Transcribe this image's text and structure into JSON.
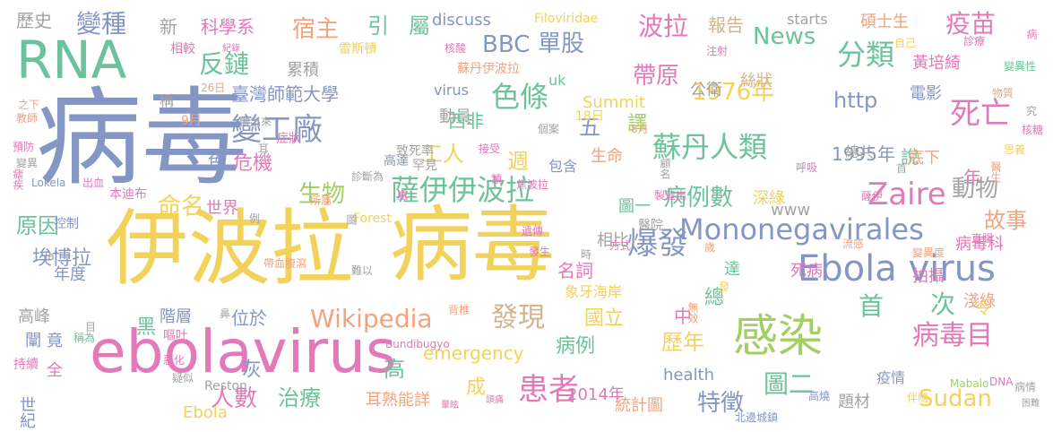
{
  "palette": {
    "blue": "#8496c4",
    "green": "#6cc39b",
    "pink": "#e279b8",
    "orange": "#f2a37f",
    "yellow": "#f2d25b",
    "grey": "#a3a3a3",
    "lime": "#a3cf62",
    "tan": "#d6b28c"
  },
  "words": [
    {
      "text": "病毒",
      "color": "blue"
    },
    {
      "text": "伊波拉",
      "color": "yellow"
    },
    {
      "text": "病毒",
      "color": "yellow"
    },
    {
      "text": "ebolavirus",
      "color": "pink"
    },
    {
      "text": "RNA",
      "color": "green"
    },
    {
      "text": "感染",
      "color": "lime"
    },
    {
      "text": "Ebola virus",
      "color": "blue"
    },
    {
      "text": "Mononegavirales",
      "color": "blue"
    },
    {
      "text": "薩伊伊波拉",
      "color": "green"
    },
    {
      "text": "蘇丹人類",
      "color": "green"
    },
    {
      "text": "Zaire",
      "color": "pink"
    },
    {
      "text": "死亡",
      "color": "pink"
    },
    {
      "text": "患者",
      "color": "pink"
    },
    {
      "text": "爆發",
      "color": "blue"
    },
    {
      "text": "病毒目",
      "color": "pink"
    },
    {
      "text": "變工廠",
      "color": "blue"
    },
    {
      "text": "色條",
      "color": "green"
    },
    {
      "text": "發現",
      "color": "tan"
    },
    {
      "text": "Wikipedia",
      "color": "orange"
    },
    {
      "text": "分類",
      "color": "green"
    },
    {
      "text": "1976年",
      "color": "yellow"
    },
    {
      "text": "首",
      "color": "green"
    },
    {
      "text": "次",
      "color": "green"
    },
    {
      "text": "病例數",
      "color": "green"
    },
    {
      "text": "疫苗",
      "color": "pink"
    },
    {
      "text": "反鏈",
      "color": "green"
    },
    {
      "text": "宿主",
      "color": "orange"
    },
    {
      "text": "變種",
      "color": "blue"
    },
    {
      "text": "BBC",
      "color": "blue"
    },
    {
      "text": "News",
      "color": "green"
    },
    {
      "text": "單股",
      "color": "blue"
    },
    {
      "text": "波拉",
      "color": "pink"
    },
    {
      "text": "帶原",
      "color": "pink"
    },
    {
      "text": "工人",
      "color": "yellow"
    },
    {
      "text": "Sudan",
      "color": "yellow"
    },
    {
      "text": "圖二",
      "color": "green"
    },
    {
      "text": "治療",
      "color": "green"
    },
    {
      "text": "人數",
      "color": "pink"
    },
    {
      "text": "特徵",
      "color": "blue"
    },
    {
      "text": "歷年",
      "color": "yellow"
    },
    {
      "text": "生物",
      "color": "lime"
    },
    {
      "text": "命名",
      "color": "yellow"
    },
    {
      "text": "原因",
      "color": "green"
    },
    {
      "text": "動物",
      "color": "grey"
    },
    {
      "text": "故事",
      "color": "orange"
    },
    {
      "text": "病例",
      "color": "green"
    },
    {
      "text": "國立",
      "color": "yellow"
    },
    {
      "text": "1995年",
      "color": "blue"
    },
    {
      "text": "http",
      "color": "blue"
    },
    {
      "text": "臺灣師範大學",
      "color": "blue"
    },
    {
      "text": "科學系",
      "color": "pink"
    },
    {
      "text": "emergency",
      "color": "yellow"
    },
    {
      "text": "health",
      "color": "blue"
    },
    {
      "text": "2014年",
      "color": "pink"
    },
    {
      "text": "Ebola",
      "color": "yellow"
    },
    {
      "text": "Reston",
      "color": "grey"
    },
    {
      "text": "discuss",
      "color": "blue"
    },
    {
      "text": "Filoviridae",
      "color": "yellow"
    },
    {
      "text": "starts",
      "color": "grey"
    },
    {
      "text": "碩士生",
      "color": "orange"
    },
    {
      "text": "Summit",
      "color": "yellow"
    },
    {
      "text": "virus",
      "color": "blue"
    },
    {
      "text": "uk",
      "color": "green"
    },
    {
      "text": "www",
      "color": "grey"
    },
    {
      "text": "Forest",
      "color": "yellow"
    },
    {
      "text": "Lokela",
      "color": "blue"
    },
    {
      "text": "Taï",
      "color": "grey"
    },
    {
      "text": "Mabalo",
      "color": "lime"
    },
    {
      "text": "DNA",
      "color": "pink"
    },
    {
      "text": "Bundibugyo",
      "color": "pink"
    },
    {
      "text": "黃培綺",
      "color": "pink"
    },
    {
      "text": "電影",
      "color": "blue"
    },
    {
      "text": "報告",
      "color": "tan"
    },
    {
      "text": "雷斯頓",
      "color": "yellow"
    },
    {
      "text": "蘇丹伊波拉",
      "color": "orange"
    },
    {
      "text": "累積",
      "color": "grey"
    },
    {
      "text": "公衛",
      "color": "grey"
    },
    {
      "text": "絲狀",
      "color": "tan"
    },
    {
      "text": "引",
      "color": "green"
    },
    {
      "text": "屬",
      "color": "green"
    },
    {
      "text": "新",
      "color": "grey"
    },
    {
      "text": "歷史",
      "color": "grey"
    },
    {
      "text": "動員",
      "color": "grey"
    },
    {
      "text": "西非",
      "color": "green"
    },
    {
      "text": "五",
      "color": "blue"
    },
    {
      "text": "譯",
      "color": "lime"
    },
    {
      "text": "週",
      "color": "yellow"
    },
    {
      "text": "包含",
      "color": "blue"
    },
    {
      "text": "生命",
      "color": "orange"
    },
    {
      "text": "危機",
      "color": "pink"
    },
    {
      "text": "色",
      "color": "blue"
    },
    {
      "text": "世界",
      "color": "pink"
    },
    {
      "text": "年",
      "color": "pink"
    },
    {
      "text": "說",
      "color": "green"
    },
    {
      "text": "底下",
      "color": "orange"
    },
    {
      "text": "深綠",
      "color": "yellow"
    },
    {
      "text": "圖一",
      "color": "green"
    },
    {
      "text": "相比",
      "color": "grey"
    },
    {
      "text": "名詞",
      "color": "pink"
    },
    {
      "text": "達",
      "color": "green"
    },
    {
      "text": "總",
      "color": "green"
    },
    {
      "text": "死病",
      "color": "pink"
    },
    {
      "text": "象牙海岸",
      "color": "yellow"
    },
    {
      "text": "中",
      "color": "pink"
    },
    {
      "text": "埃博拉",
      "color": "blue"
    },
    {
      "text": "年度",
      "color": "blue"
    },
    {
      "text": "高峰",
      "color": "grey"
    },
    {
      "text": "黑",
      "color": "green"
    },
    {
      "text": "階層",
      "color": "blue"
    },
    {
      "text": "位於",
      "color": "blue"
    },
    {
      "text": "高",
      "color": "green"
    },
    {
      "text": "成",
      "color": "yellow"
    },
    {
      "text": "灰",
      "color": "blue"
    },
    {
      "text": "全",
      "color": "pink"
    },
    {
      "text": "竟",
      "color": "blue"
    },
    {
      "text": "世紀",
      "color": "blue"
    },
    {
      "text": "耳熟能詳",
      "color": "orange"
    },
    {
      "text": "統計圖",
      "color": "orange"
    },
    {
      "text": "題材",
      "color": "grey"
    },
    {
      "text": "疫情",
      "color": "blue"
    },
    {
      "text": "拍攝",
      "color": "pink"
    },
    {
      "text": "淺綠",
      "color": "orange"
    },
    {
      "text": "令",
      "color": "yellow"
    },
    {
      "text": "病毒科",
      "color": "pink"
    },
    {
      "text": "北邊城鎮",
      "color": "blue"
    },
    {
      "text": "稱",
      "color": "grey"
    },
    {
      "text": "究",
      "color": "grey"
    },
    {
      "text": "物質",
      "color": "tan"
    },
    {
      "text": "總共",
      "color": "grey"
    },
    {
      "text": "首",
      "color": "grey"
    },
    {
      "text": "高燒",
      "color": "blue"
    },
    {
      "text": "伴隨",
      "color": "yellow"
    },
    {
      "text": "病情",
      "color": "grey"
    },
    {
      "text": "困難",
      "color": "grey"
    },
    {
      "text": "持續",
      "color": "pink"
    },
    {
      "text": "闡",
      "color": "blue"
    },
    {
      "text": "疑似",
      "color": "grey"
    },
    {
      "text": "嘔吐",
      "color": "pink"
    },
    {
      "text": "稱為",
      "color": "green"
    },
    {
      "text": "惡化",
      "color": "pink"
    },
    {
      "text": "變異",
      "color": "grey"
    },
    {
      "text": "變異度",
      "color": "orange"
    },
    {
      "text": "流感",
      "color": "orange"
    },
    {
      "text": "直腸",
      "color": "pink"
    },
    {
      "text": "呼吸",
      "color": "pink"
    },
    {
      "text": "薩伊",
      "color": "pink"
    },
    {
      "text": "醫生",
      "color": "orange"
    },
    {
      "text": "思義",
      "color": "yellow"
    },
    {
      "text": "核糖",
      "color": "pink"
    },
    {
      "text": "變異性",
      "color": "green"
    },
    {
      "text": "診療",
      "color": "pink"
    },
    {
      "text": "自己",
      "color": "yellow"
    },
    {
      "text": "注射",
      "color": "pink"
    },
    {
      "text": "核酸",
      "color": "pink"
    },
    {
      "text": "紀錄",
      "color": "pink"
    },
    {
      "text": "相較",
      "color": "pink"
    },
    {
      "text": "26日",
      "color": "orange"
    },
    {
      "text": "9月",
      "color": "orange"
    },
    {
      "text": "8月",
      "color": "orange"
    },
    {
      "text": "18日",
      "color": "yellow"
    },
    {
      "text": "個案",
      "color": "grey"
    },
    {
      "text": "接受",
      "color": "pink"
    },
    {
      "text": "症狀",
      "color": "pink"
    },
    {
      "text": "做出來",
      "color": "grey"
    },
    {
      "text": "耳",
      "color": "grey"
    },
    {
      "text": "高達",
      "color": "blue"
    },
    {
      "text": "罕見",
      "color": "grey"
    },
    {
      "text": "診斷為",
      "color": "grey"
    },
    {
      "text": "致死率",
      "color": "grey"
    },
    {
      "text": "類",
      "color": "pink"
    },
    {
      "text": "處",
      "color": "pink"
    },
    {
      "text": "焦波拉",
      "color": "pink"
    },
    {
      "text": "製造出",
      "color": "pink"
    },
    {
      "text": "顧名",
      "color": "grey"
    },
    {
      "text": "帶血腹瀉",
      "color": "orange"
    },
    {
      "text": "所屬",
      "color": "orange"
    },
    {
      "text": "例",
      "color": "grey"
    },
    {
      "text": "出血",
      "color": "pink"
    },
    {
      "text": "本迪布",
      "color": "pink"
    },
    {
      "text": "控制",
      "color": "blue"
    },
    {
      "text": "教師",
      "color": "orange"
    },
    {
      "text": "預防",
      "color": "pink"
    },
    {
      "text": "瘧疾",
      "color": "pink"
    },
    {
      "text": "之下",
      "color": "orange"
    },
    {
      "text": "遺傳",
      "color": "pink"
    },
    {
      "text": "發生",
      "color": "pink"
    },
    {
      "text": "醫院",
      "color": "grey"
    },
    {
      "text": "方式",
      "color": "pink"
    },
    {
      "text": "歲",
      "color": "orange"
    },
    {
      "text": "時",
      "color": "grey"
    },
    {
      "text": "難以",
      "color": "grey"
    },
    {
      "text": "背椎",
      "color": "orange"
    },
    {
      "text": "發",
      "color": "yellow"
    },
    {
      "text": "無效",
      "color": "orange"
    },
    {
      "text": "鼻",
      "color": "grey"
    },
    {
      "text": "暈眩",
      "color": "pink"
    },
    {
      "text": "頭痛",
      "color": "pink"
    },
    {
      "text": "目",
      "color": "grey"
    },
    {
      "text": "病",
      "color": "pink"
    },
    {
      "text": "圖",
      "color": "grey"
    }
  ]
}
